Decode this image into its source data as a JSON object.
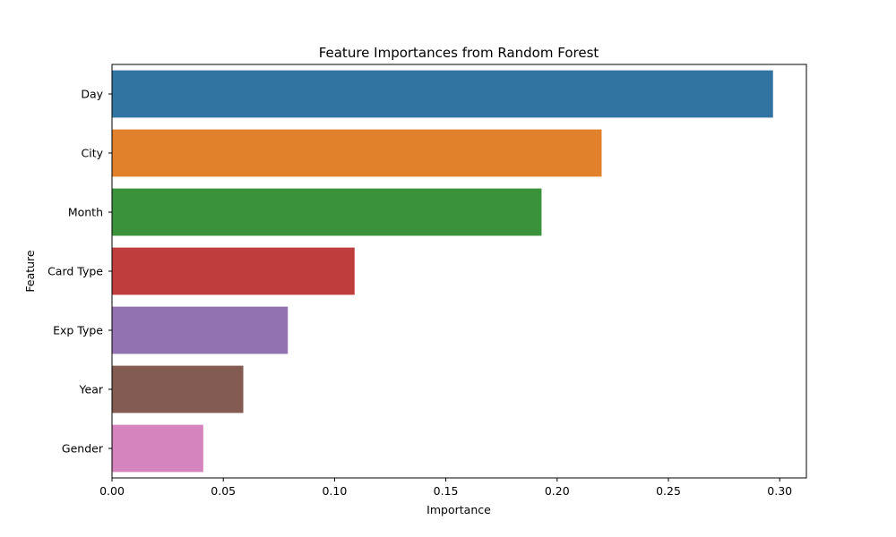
{
  "chart_data": {
    "type": "bar",
    "orientation": "horizontal",
    "title": "Feature Importances from Random Forest",
    "xlabel": "Importance",
    "ylabel": "Feature",
    "categories": [
      "Day",
      "City",
      "Month",
      "Card Type",
      "Exp Type",
      "Year",
      "Gender"
    ],
    "values": [
      0.297,
      0.22,
      0.193,
      0.109,
      0.079,
      0.059,
      0.041
    ],
    "colors": [
      "#3274a1",
      "#e1812c",
      "#3a923a",
      "#c03d3e",
      "#9372b2",
      "#845b53",
      "#d684bd"
    ],
    "xlim": [
      0,
      0.312
    ],
    "xticks": [
      "0.00",
      "0.05",
      "0.10",
      "0.15",
      "0.20",
      "0.25",
      "0.30"
    ],
    "grid": false,
    "legend": "none"
  }
}
